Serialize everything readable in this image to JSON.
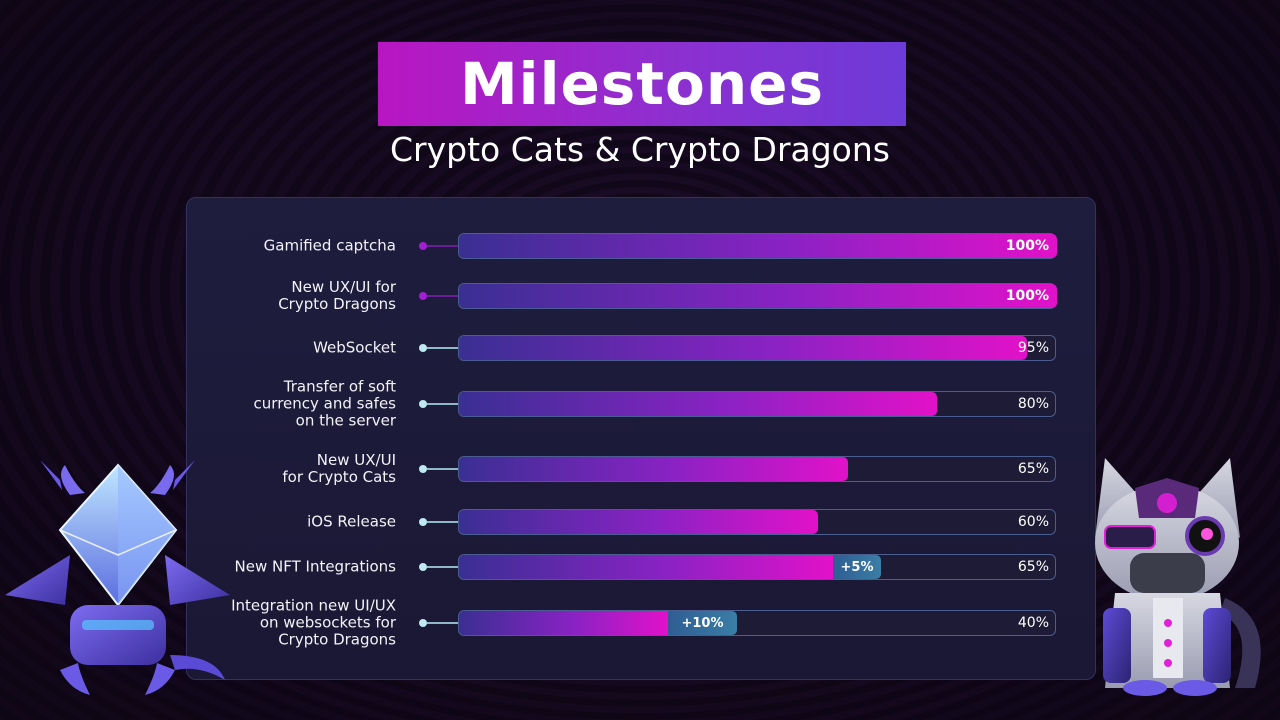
{
  "title": "Milestones",
  "subtitle": "Crypto Cats & Crypto Dragons",
  "chart_data": {
    "type": "bar",
    "orientation": "horizontal",
    "categories": [
      "Gamified captcha",
      "New UX/UI for\nCrypto Dragons",
      "WebSocket",
      "Transfer of soft\ncurrency and safes\non the server",
      "New UX/UI\nfor Crypto Cats",
      "iOS Release",
      "New NFT Integrations",
      "Integration new UI/UX\non websockets for\nCrypto Dragons"
    ],
    "values": [
      100,
      100,
      95,
      80,
      65,
      60,
      65,
      40
    ],
    "value_labels": [
      "100%",
      "100%",
      "95%",
      "80%",
      "65%",
      "60%",
      "65%",
      "40%"
    ],
    "bonus": [
      null,
      null,
      null,
      null,
      null,
      null,
      5,
      10
    ],
    "bonus_labels": [
      "",
      "",
      "",
      "",
      "",
      "",
      "+5%",
      "+10%"
    ],
    "xlim": [
      0,
      100
    ],
    "colors": {
      "bar_start": "#3a2f93",
      "bar_end": "#e211c9",
      "bonus": "#3a7ea6",
      "dot_complete": "#a21fd4",
      "dot_progress": "#bfe9f2"
    }
  }
}
